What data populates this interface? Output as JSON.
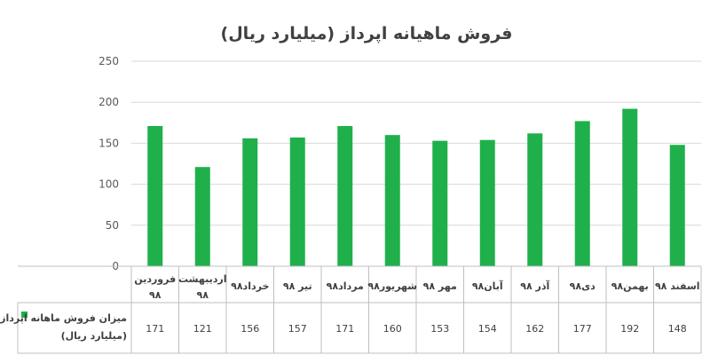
{
  "chart_data": {
    "type": "bar",
    "title": "فروش ماهیانه اپرداز (میلیارد ریال)",
    "categories": [
      [
        "فروردین",
        "۹۸"
      ],
      [
        "اردیبهشت",
        "۹۸"
      ],
      [
        "خرداد۹۸"
      ],
      [
        "تیر ۹۸"
      ],
      [
        "مرداد۹۸"
      ],
      [
        "شهریور۹۸"
      ],
      [
        "مهر ۹۸"
      ],
      [
        "آبان۹۸"
      ],
      [
        "آذر ۹۸"
      ],
      [
        "دی۹۸"
      ],
      [
        "بهمن۹۸"
      ],
      [
        "اسفند ۹۸"
      ]
    ],
    "series": [
      {
        "name": [
          "میزان فروش ماهانه اپرداز",
          "(میلیارد ریال)"
        ],
        "color": "#1fb04b",
        "values": [
          171,
          121,
          156,
          157,
          171,
          160,
          153,
          154,
          162,
          177,
          192,
          148
        ]
      }
    ],
    "yticks": [
      "0",
      "50",
      "100",
      "150",
      "200",
      "250"
    ],
    "ylim": [
      0,
      250
    ],
    "grid": true,
    "legend": "data-table-left"
  }
}
